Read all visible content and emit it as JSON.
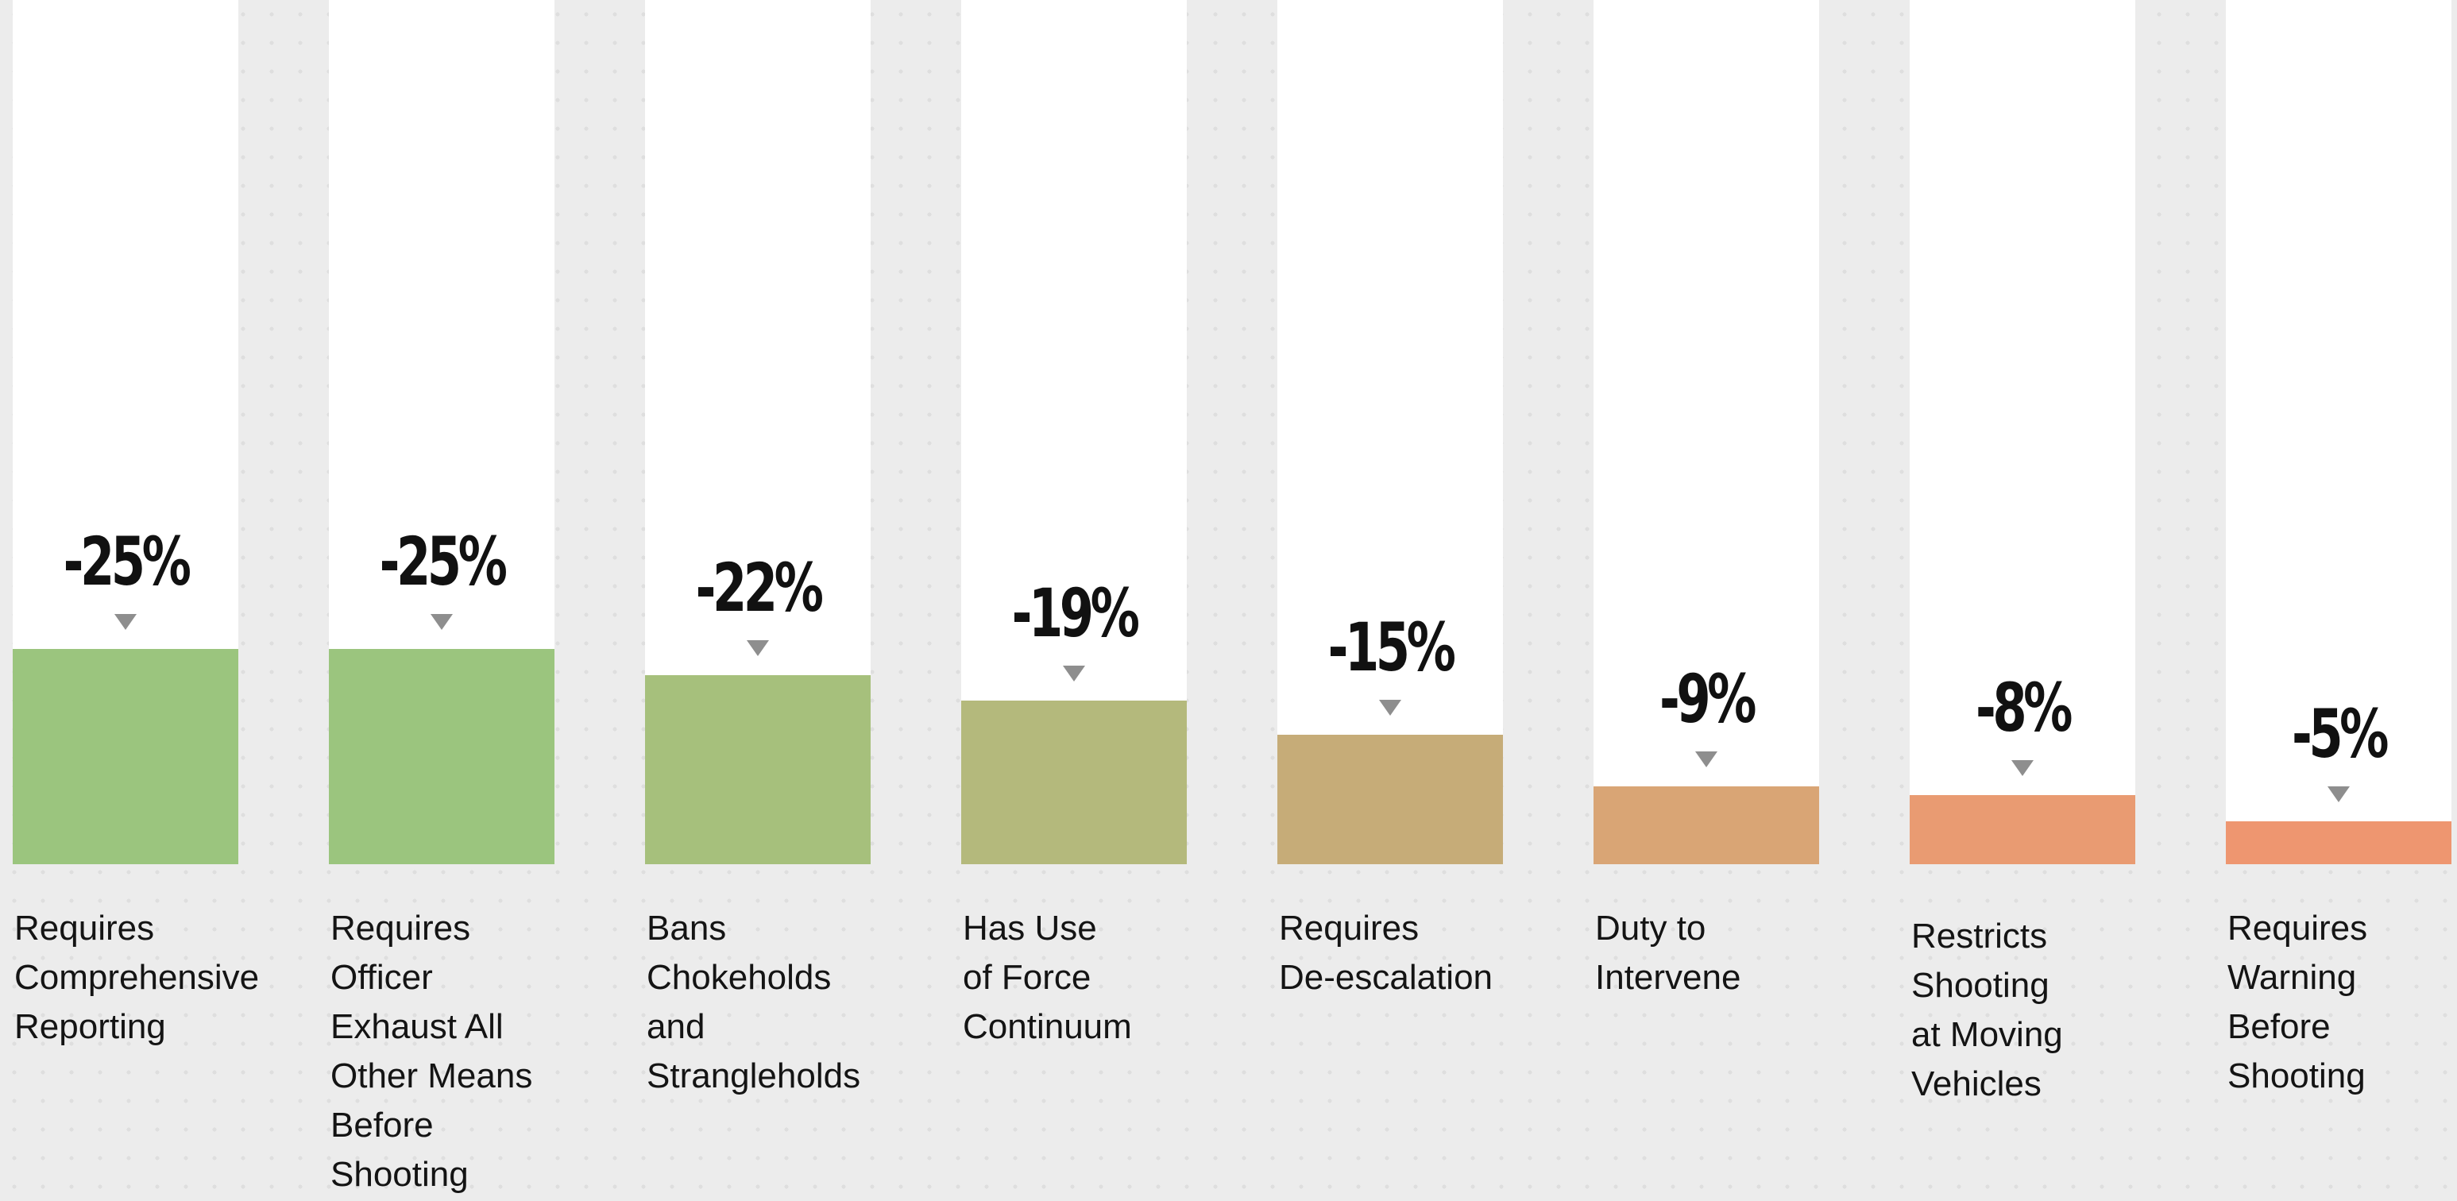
{
  "chart_data": {
    "type": "bar",
    "categories": [
      "Requires\nComprehensive\nReporting",
      "Requires\nOfficer\nExhaust All\nOther Means\nBefore\nShooting",
      "Bans\nChokeholds\nand\nStrangleholds",
      "Has Use\nof Force\nContinuum",
      "Requires\nDe-escalation",
      "Duty to\nIntervene",
      "Restricts\nShooting\nat Moving\nVehicles",
      "Requires\nWarning\nBefore\nShooting"
    ],
    "values": [
      -25,
      -25,
      -22,
      -19,
      -15,
      -9,
      -8,
      -5
    ],
    "value_labels": [
      "-25%",
      "-25%",
      "-22%",
      "-19%",
      "-15%",
      "-9%",
      "-8%",
      "-5%"
    ],
    "bar_colors": [
      "#9bc57e",
      "#9bc57e",
      "#a6c07c",
      "#b4b97c",
      "#c6ac78",
      "#d9a575",
      "#e99b72",
      "#ee9670"
    ],
    "marker_color": "#8e8e8e",
    "column_color": "#ffffff",
    "title": "",
    "xlabel": "",
    "ylabel": "",
    "ylim": [
      -25,
      0
    ],
    "grid": false,
    "legend": "none"
  }
}
